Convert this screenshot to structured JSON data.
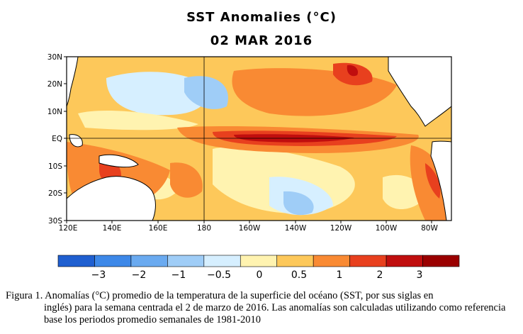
{
  "title": "SST Anomalies (°C)",
  "date": "02 MAR 2016",
  "map": {
    "lat_labels": [
      "30N",
      "20N",
      "10N",
      "EQ",
      "10S",
      "20S",
      "30S"
    ],
    "lon_labels": [
      "120E",
      "140E",
      "160E",
      "180",
      "160W",
      "140W",
      "120W",
      "100W",
      "80W"
    ],
    "reference_lines": [
      "EQ",
      "180"
    ]
  },
  "colorbar": {
    "colors": [
      "#1f5fd0",
      "#3d88e8",
      "#6aaaf0",
      "#9fcdf7",
      "#d6efff",
      "#fff3b0",
      "#fdc85a",
      "#f98a33",
      "#e8401e",
      "#c00e0e",
      "#9a0000"
    ],
    "tick_labels": [
      "−3",
      "−2",
      "−1",
      "−0.5",
      "0",
      "0.5",
      "1",
      "2",
      "3"
    ]
  },
  "caption": {
    "first_line": "Figura 1. Anomalías (°C) promedio de la temperatura de la superficie del océano (SST, por sus siglas en",
    "rest": "inglés) para la semana centrada el 2 de marzo de 2016. Las anomalías son calculadas utilizando como referencia base los periodos promedio semanales de 1981-2010"
  }
}
